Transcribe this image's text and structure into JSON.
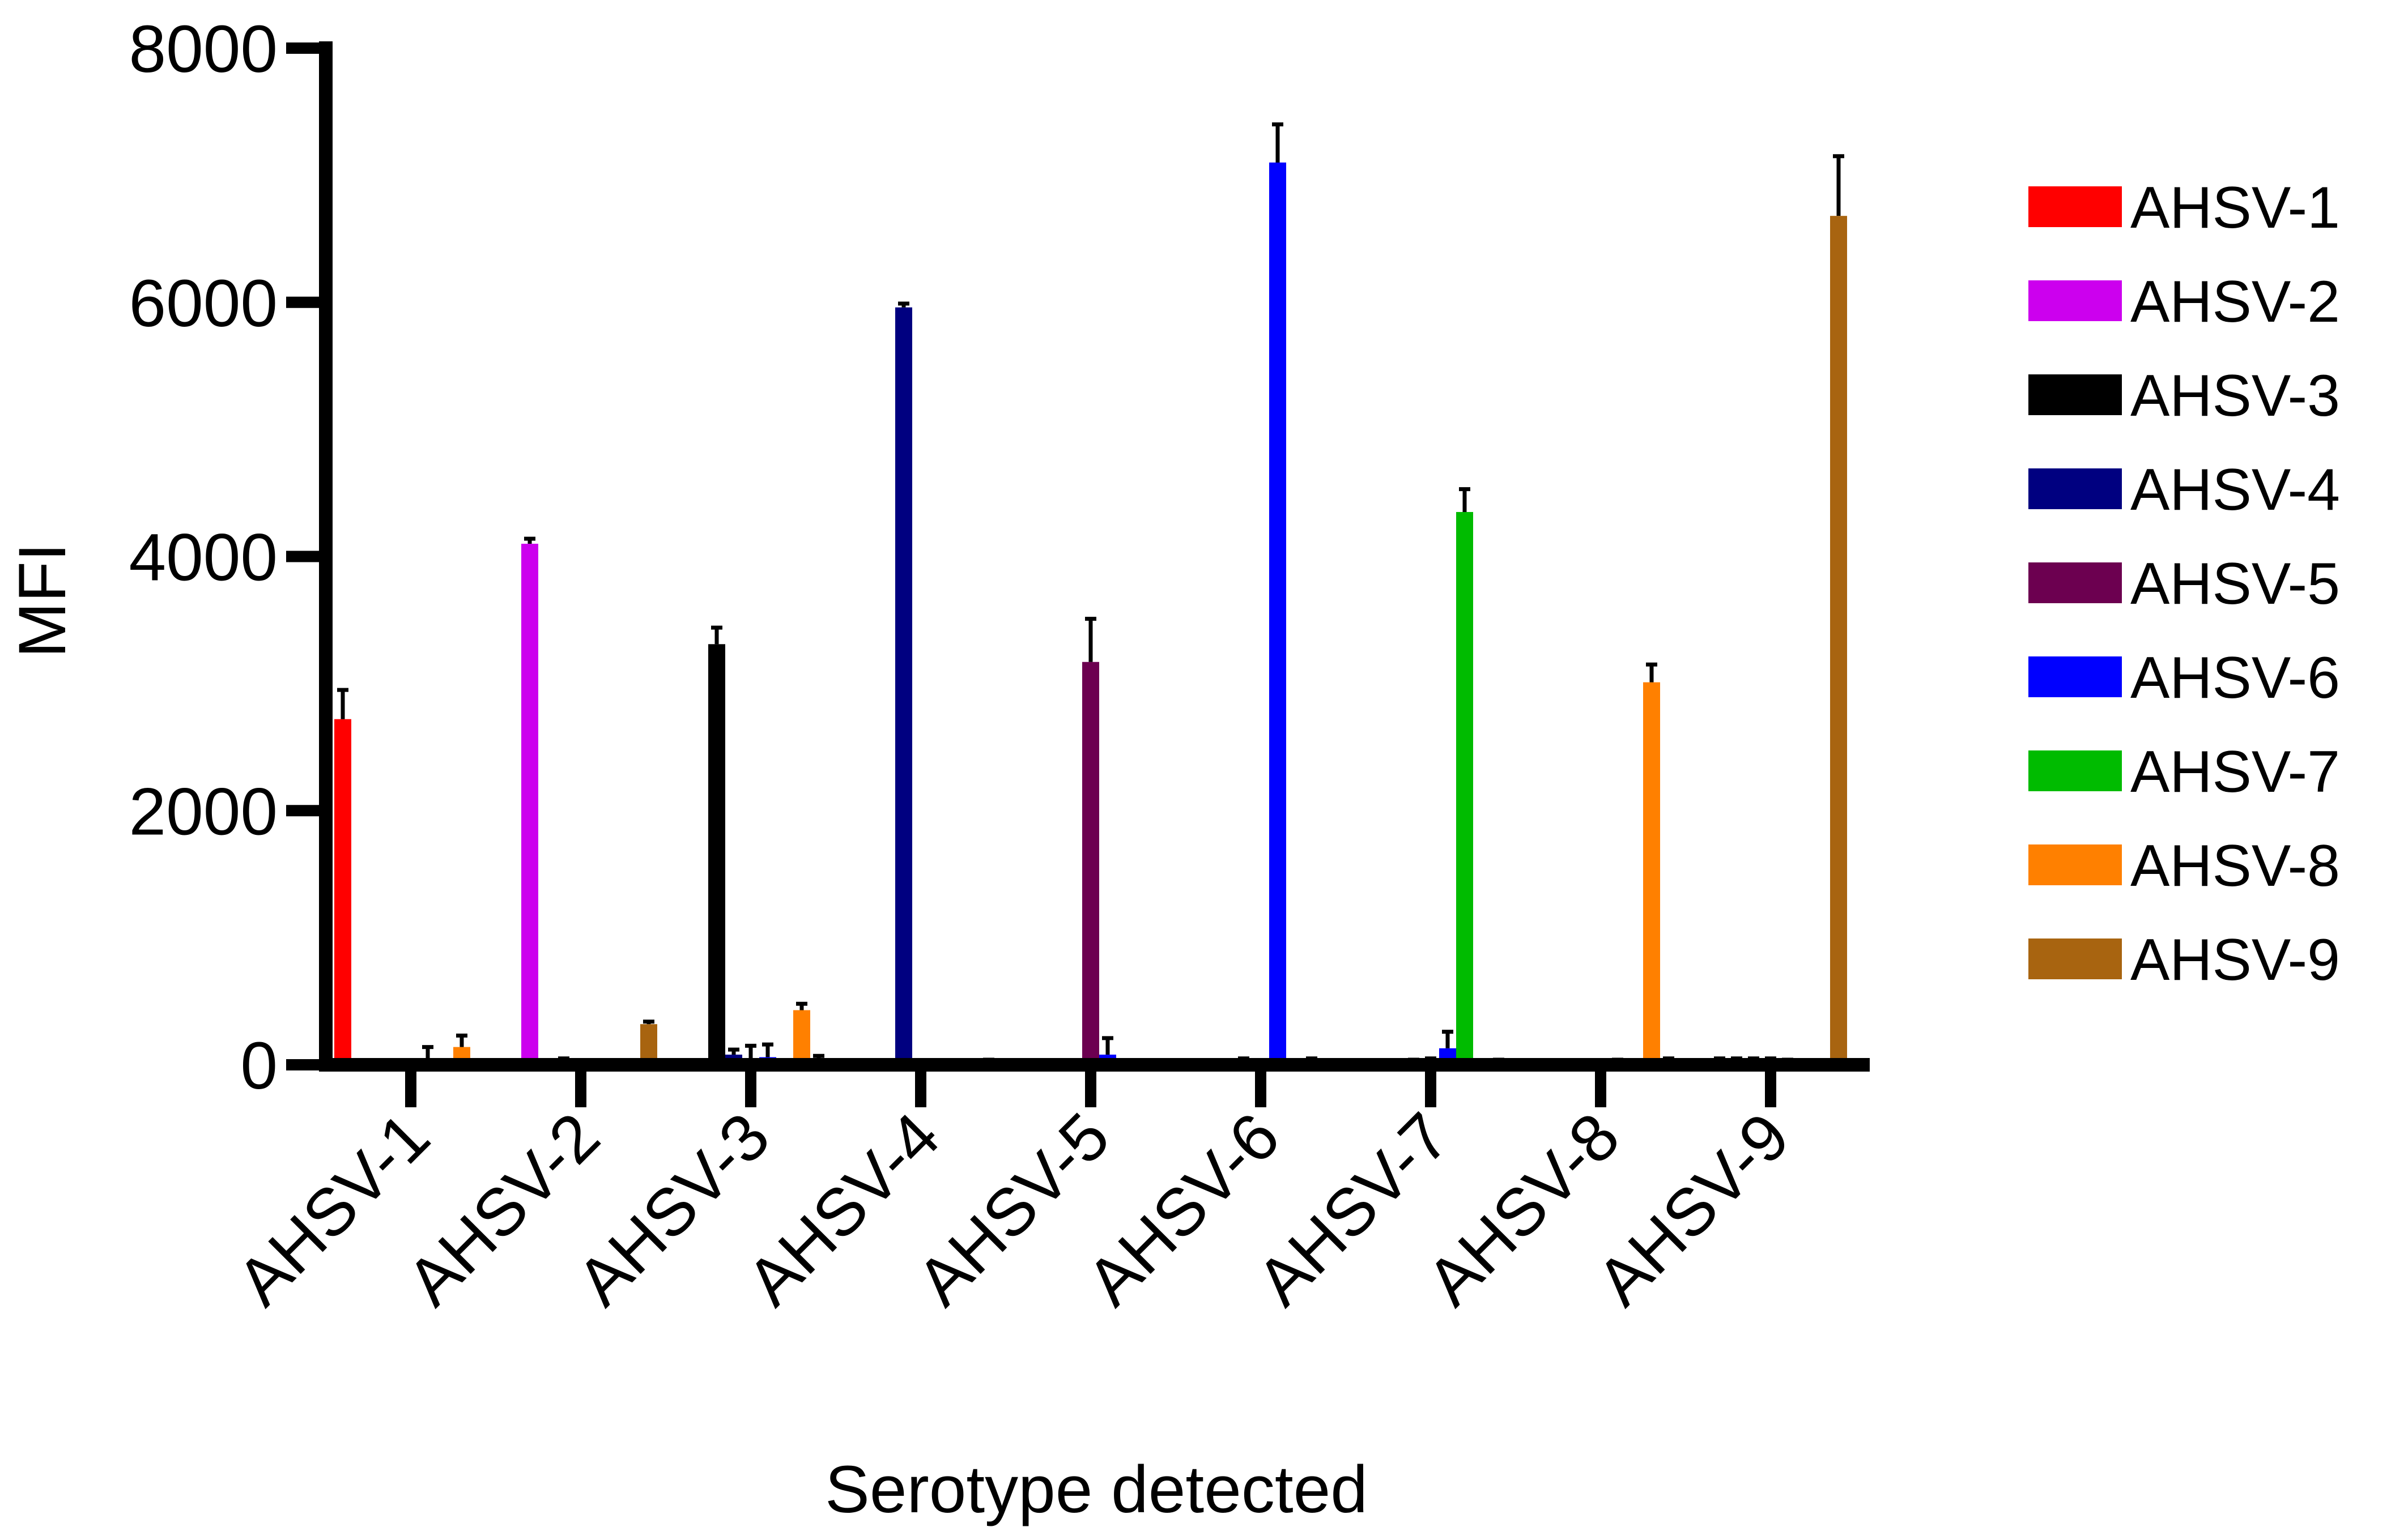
{
  "chart_data": {
    "type": "bar",
    "title": "",
    "xlabel": "Serotype detected",
    "ylabel": "MFI",
    "ylim": [
      0,
      8000
    ],
    "yticks": [
      0,
      2000,
      4000,
      6000,
      8000
    ],
    "grid": false,
    "legend_position": "right",
    "categories": [
      "AHSV-1",
      "AHSV-2",
      "AHSV-3",
      "AHSV-4",
      "AHSV-5",
      "AHSV-6",
      "AHSV-7",
      "AHSV-8",
      "AHSV-9"
    ],
    "series": [
      {
        "name": "AHSV-1",
        "color": "#ff0000",
        "values": [
          2720,
          0,
          0,
          0,
          0,
          0,
          0,
          0,
          0
        ],
        "errors": [
          230,
          0,
          0,
          0,
          0,
          0,
          0,
          0,
          0
        ]
      },
      {
        "name": "AHSV-2",
        "color": "#cc00ee",
        "values": [
          0,
          4100,
          0,
          0,
          0,
          0,
          0,
          0,
          10
        ],
        "errors": [
          0,
          40,
          0,
          0,
          0,
          0,
          0,
          0,
          40
        ]
      },
      {
        "name": "AHSV-3",
        "color": "#000000",
        "values": [
          0,
          0,
          3310,
          0,
          0,
          0,
          0,
          0,
          20
        ],
        "errors": [
          0,
          0,
          130,
          0,
          0,
          0,
          0,
          0,
          30
        ]
      },
      {
        "name": "AHSV-4",
        "color": "#000080",
        "values": [
          0,
          30,
          80,
          5960,
          0,
          20,
          20,
          10,
          20
        ],
        "errors": [
          0,
          20,
          40,
          30,
          0,
          30,
          20,
          20,
          30
        ]
      },
      {
        "name": "AHSV-5",
        "color": "#6c0050",
        "values": [
          0,
          10,
          40,
          10,
          3170,
          10,
          30,
          0,
          30
        ],
        "errors": [
          0,
          10,
          110,
          20,
          340,
          20,
          20,
          10,
          20
        ]
      },
      {
        "name": "AHSV-6",
        "color": "#0000ff",
        "values": [
          0,
          0,
          60,
          0,
          80,
          7100,
          130,
          20,
          10
        ],
        "errors": [
          140,
          30,
          100,
          20,
          130,
          300,
          130,
          20,
          30
        ]
      },
      {
        "name": "AHSV-7",
        "color": "#00bb00",
        "values": [
          0,
          0,
          0,
          0,
          0,
          10,
          4350,
          0,
          10
        ],
        "errors": [
          0,
          0,
          0,
          0,
          0,
          20,
          180,
          0,
          20
        ]
      },
      {
        "name": "AHSV-8",
        "color": "#ff8000",
        "values": [
          140,
          0,
          430,
          10,
          0,
          20,
          10,
          3010,
          0
        ],
        "errors": [
          90,
          0,
          50,
          20,
          0,
          30,
          10,
          140,
          0
        ]
      },
      {
        "name": "AHSV-9",
        "color": "#a86410",
        "values": [
          10,
          320,
          30,
          20,
          10,
          10,
          20,
          30,
          6680
        ],
        "errors": [
          20,
          20,
          40,
          20,
          20,
          20,
          20,
          20,
          470
        ]
      }
    ]
  }
}
